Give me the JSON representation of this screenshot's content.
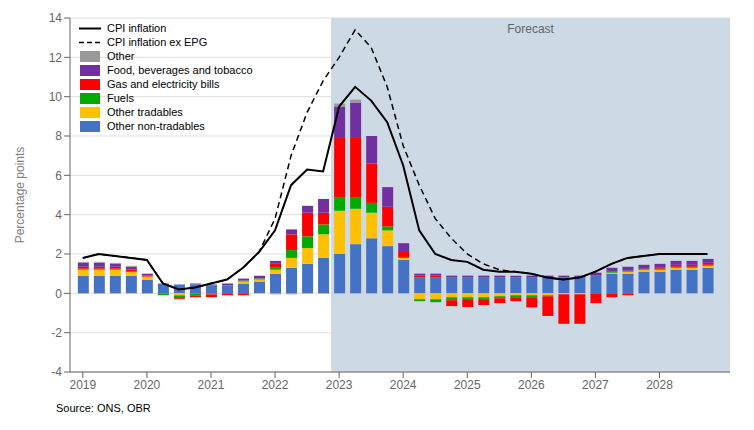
{
  "chart_data": {
    "type": "bar",
    "stacked": true,
    "grid": true,
    "legend": "upper left",
    "ylabel": "Percentage points",
    "source": "Source: ONS, OBR",
    "shaded_region": {
      "from": 2022.875,
      "color": "#cdd9e5",
      "label": "Forecast"
    },
    "x": [
      2019.0,
      2019.25,
      2019.5,
      2019.75,
      2020.0,
      2020.25,
      2020.5,
      2020.75,
      2021.0,
      2021.25,
      2021.5,
      2021.75,
      2022.0,
      2022.25,
      2022.5,
      2022.75,
      2023.0,
      2023.25,
      2023.5,
      2023.75,
      2024.0,
      2024.25,
      2024.5,
      2024.75,
      2025.0,
      2025.25,
      2025.5,
      2025.75,
      2026.0,
      2026.25,
      2026.5,
      2026.75,
      2027.0,
      2027.25,
      2027.5,
      2027.75,
      2028.0,
      2028.25,
      2028.5,
      2028.75
    ],
    "xlim": [
      2018.8,
      2029.1
    ],
    "xticks": [
      2019,
      2020,
      2021,
      2022,
      2023,
      2024,
      2025,
      2026,
      2027,
      2028
    ],
    "ylim": [
      -4,
      14
    ],
    "yticks": [
      -4,
      -2,
      0,
      2,
      4,
      6,
      8,
      10,
      12,
      14
    ],
    "series": [
      {
        "name": "Other non-tradables",
        "type": "bar",
        "color": "#4472c4",
        "values": [
          0.9,
          0.9,
          0.9,
          0.9,
          0.7,
          0.5,
          0.45,
          0.45,
          0.4,
          0.4,
          0.5,
          0.6,
          1.0,
          1.3,
          1.5,
          1.8,
          2.0,
          2.5,
          2.8,
          2.4,
          1.7,
          0.8,
          0.8,
          0.8,
          0.8,
          0.8,
          0.8,
          0.8,
          0.8,
          0.8,
          0.8,
          0.8,
          0.9,
          1.0,
          1.0,
          1.1,
          1.1,
          1.2,
          1.2,
          1.3
        ]
      },
      {
        "name": "Other tradables",
        "type": "bar",
        "color": "#ffc000",
        "values": [
          0.3,
          0.3,
          0.3,
          0.2,
          0.15,
          0.0,
          -0.1,
          0.0,
          0.0,
          0.0,
          0.1,
          0.1,
          0.2,
          0.5,
          0.8,
          1.2,
          2.2,
          1.8,
          1.3,
          0.8,
          0.1,
          -0.3,
          -0.3,
          -0.2,
          -0.2,
          -0.2,
          -0.15,
          -0.1,
          -0.1,
          -0.1,
          -0.05,
          -0.05,
          0.0,
          0.05,
          0.1,
          0.1,
          0.1,
          0.1,
          0.1,
          0.1
        ]
      },
      {
        "name": "Fuels",
        "type": "bar",
        "color": "#00aa00",
        "values": [
          0.05,
          0.05,
          0.05,
          0.0,
          0.0,
          -0.1,
          -0.15,
          -0.1,
          -0.05,
          0.0,
          0.05,
          0.05,
          0.1,
          0.4,
          0.6,
          0.5,
          0.7,
          0.6,
          0.5,
          0.2,
          0.05,
          -0.1,
          -0.15,
          -0.15,
          -0.1,
          -0.1,
          -0.1,
          -0.1,
          -0.1,
          -0.05,
          0.0,
          0.0,
          0.0,
          0.05,
          0.05,
          0.05,
          0.05,
          0.05,
          0.05,
          0.05
        ]
      },
      {
        "name": "Gas and electricity bills",
        "type": "bar",
        "color": "#ff0000",
        "values": [
          0.1,
          0.1,
          0.1,
          0.1,
          0.05,
          0.0,
          -0.05,
          -0.1,
          -0.15,
          -0.1,
          -0.1,
          0.0,
          0.2,
          0.8,
          1.2,
          0.6,
          3.0,
          3.0,
          2.0,
          1.0,
          0.3,
          0.1,
          0.1,
          -0.3,
          -0.4,
          -0.3,
          -0.25,
          -0.2,
          -0.5,
          -1.0,
          -1.5,
          -1.5,
          -0.5,
          -0.2,
          -0.1,
          0.0,
          0.05,
          0.1,
          0.1,
          0.1
        ]
      },
      {
        "name": "Food, beverages and tobacco",
        "type": "bar",
        "color": "#7030a0",
        "values": [
          0.2,
          0.2,
          0.15,
          0.15,
          0.1,
          0.0,
          0.0,
          0.05,
          0.05,
          0.1,
          0.1,
          0.15,
          0.15,
          0.25,
          0.35,
          0.7,
          1.6,
          1.8,
          1.4,
          1.0,
          0.4,
          0.1,
          0.1,
          0.1,
          0.1,
          0.1,
          0.1,
          0.1,
          0.1,
          0.1,
          0.1,
          0.1,
          0.15,
          0.2,
          0.2,
          0.2,
          0.2,
          0.2,
          0.2,
          0.2
        ]
      },
      {
        "name": "Other",
        "type": "bar",
        "color": "#999999",
        "values": [
          0.05,
          0.05,
          0.05,
          0.05,
          0.0,
          0.0,
          0.0,
          0.0,
          0.0,
          0.0,
          0.0,
          0.0,
          -0.05,
          -0.05,
          0.0,
          0.0,
          0.15,
          0.15,
          0.0,
          0.0,
          0.0,
          0.0,
          0.0,
          0.0,
          0.0,
          0.0,
          0.0,
          0.0,
          -0.05,
          0.0,
          0.0,
          0.0,
          0.0,
          0.0,
          0.0,
          0.0,
          0.0,
          0.0,
          0.0,
          0.0
        ]
      },
      {
        "name": "CPI inflation ex EPG",
        "type": "line",
        "color": "#000000",
        "line_style": "dashed",
        "values": [
          1.8,
          2.0,
          1.9,
          1.8,
          1.7,
          0.5,
          0.2,
          0.3,
          0.5,
          0.7,
          1.3,
          2.1,
          3.8,
          7.0,
          9.2,
          10.8,
          12.0,
          13.4,
          12.5,
          10.5,
          7.5,
          5.5,
          3.8,
          2.8,
          2.0,
          1.5,
          1.2,
          1.1,
          1.0,
          0.8,
          0.7,
          0.8,
          1.1,
          1.5,
          1.8,
          1.9,
          2.0,
          2.0,
          2.0,
          2.0
        ]
      },
      {
        "name": "CPI inflation",
        "type": "line",
        "color": "#000000",
        "line_style": "solid",
        "values": [
          1.8,
          2.0,
          1.9,
          1.8,
          1.7,
          0.5,
          0.2,
          0.3,
          0.5,
          0.7,
          1.3,
          2.1,
          3.2,
          5.5,
          6.3,
          6.2,
          9.5,
          10.5,
          9.8,
          8.7,
          6.5,
          3.2,
          2.0,
          1.7,
          1.6,
          1.2,
          1.1,
          1.1,
          1.0,
          0.8,
          0.7,
          0.8,
          1.1,
          1.5,
          1.8,
          1.9,
          2.0,
          2.0,
          2.0,
          2.0
        ]
      }
    ]
  }
}
